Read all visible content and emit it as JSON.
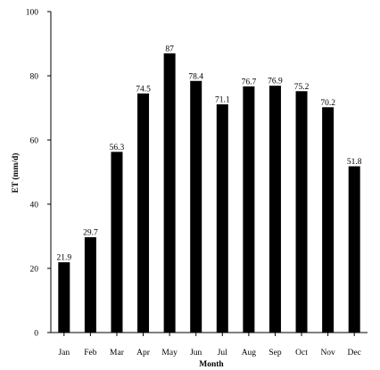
{
  "chart_data": {
    "type": "bar",
    "title": "",
    "xlabel": "Month",
    "ylabel": "ET (mm/d)",
    "categories": [
      "Jan",
      "Feb",
      "Mar",
      "Apr",
      "May",
      "Jun",
      "Jul",
      "Aug",
      "Sep",
      "Oct",
      "Nov",
      "Dec"
    ],
    "values": [
      21.9,
      29.7,
      56.3,
      74.5,
      87,
      78.4,
      71.1,
      76.7,
      76.9,
      75.2,
      70.2,
      51.8
    ],
    "data_labels": [
      "21.9",
      "29.7",
      "56.3",
      "74.5",
      "87",
      "78.4",
      "71.1",
      "76.7",
      "76.9",
      "75.2",
      "70.2",
      "51.8"
    ],
    "ylim": [
      0,
      100
    ],
    "yticks": [
      0,
      20,
      40,
      60,
      80,
      100
    ],
    "grid": false,
    "legend": "none",
    "bar_color": "#000000"
  }
}
